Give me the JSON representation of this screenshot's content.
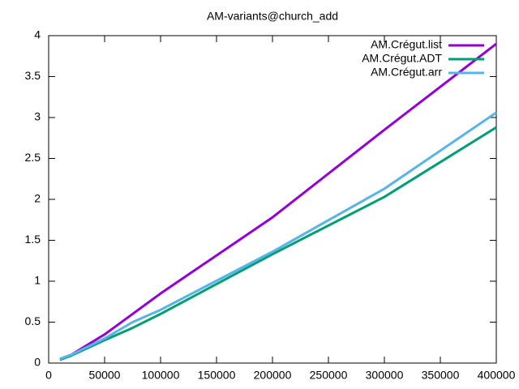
{
  "chart_data": {
    "type": "line",
    "title": "AM-variants@church_add",
    "x": [
      10000,
      20000,
      50000,
      75000,
      100000,
      200000,
      300000,
      400000
    ],
    "series": [
      {
        "name": "AM.Crégut.list",
        "color": "#9400d3",
        "values": [
          0.05,
          0.1,
          0.35,
          0.6,
          0.85,
          1.78,
          2.85,
          3.9
        ]
      },
      {
        "name": "AM.Crégut.ADT",
        "color": "#009e73",
        "values": [
          0.04,
          0.09,
          0.28,
          0.43,
          0.6,
          1.33,
          2.03,
          2.88
        ]
      },
      {
        "name": "AM.Crégut.arr",
        "color": "#56b4e9",
        "values": [
          0.05,
          0.1,
          0.3,
          0.5,
          0.65,
          1.36,
          2.13,
          3.06
        ]
      }
    ],
    "xlim": [
      0,
      400000
    ],
    "xticks": [
      0,
      50000,
      100000,
      150000,
      200000,
      250000,
      300000,
      350000,
      400000
    ],
    "ylim": [
      0,
      4
    ],
    "yticks": [
      0,
      0.5,
      1,
      1.5,
      2,
      2.5,
      3,
      3.5,
      4
    ],
    "grid": false,
    "legend": "top-right"
  }
}
